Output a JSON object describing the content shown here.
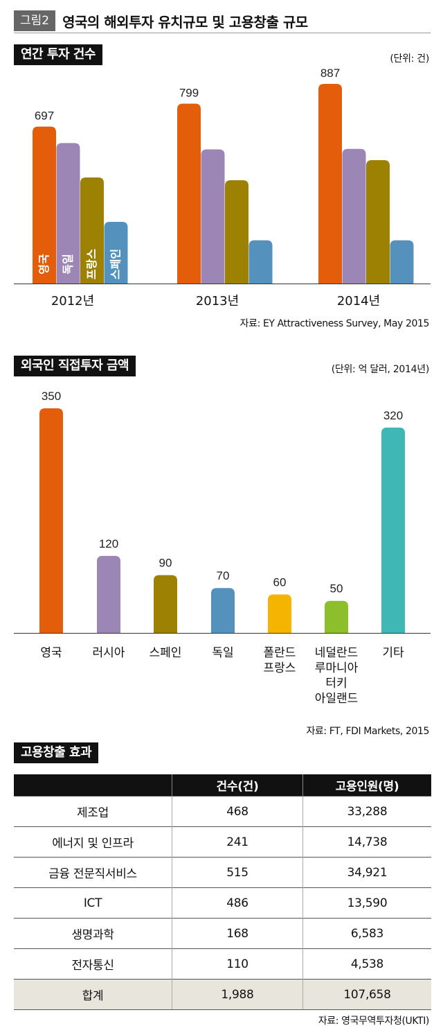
{
  "figure": {
    "tag": "그림2",
    "title": "영국의 해외투자 유치규모 및 고용창출 규모"
  },
  "colors": {
    "orange": "#e35d0b",
    "purple": "#9b86b5",
    "olive": "#9d8102",
    "blue": "#5591bd",
    "yellow": "#f4b400",
    "green": "#8dbf2c",
    "teal": "#3fb8b5",
    "axis": "#333333"
  },
  "chart_data": [
    {
      "type": "bar",
      "title": "연간 투자 건수",
      "unit": "(단위: 건)",
      "source": "자료: EY Attractiveness Survey, May 2015",
      "categories": [
        "2012년",
        "2013년",
        "2014년"
      ],
      "series": [
        {
          "name": "영국",
          "color": "#e35d0b",
          "values": [
            697,
            799,
            887
          ]
        },
        {
          "name": "독일",
          "color": "#9b86b5",
          "values": [
            624,
            596,
            598
          ]
        },
        {
          "name": "프랑스",
          "color": "#9d8102",
          "values": [
            471,
            459,
            548
          ]
        },
        {
          "name": "스페인",
          "color": "#5591bd",
          "values": [
            274,
            192,
            192
          ]
        }
      ],
      "value_labels": [
        "697",
        "799",
        "887"
      ],
      "legend": "inside-bars",
      "ylim": [
        0,
        930
      ]
    },
    {
      "type": "bar",
      "title": "외국인 직접투자 금액",
      "unit": "(단위: 억 달러, 2014년)",
      "source": "자료: FT, FDI Markets, 2015",
      "categories": [
        "영국",
        "러시아",
        "스페인",
        "독일",
        "폴란드\n프랑스",
        "네덜란드\n루마니아\n터키\n아일랜드",
        "기타"
      ],
      "values": [
        350,
        120,
        90,
        70,
        60,
        50,
        320
      ],
      "colors": [
        "#e35d0b",
        "#9b86b5",
        "#9d8102",
        "#5591bd",
        "#f4b400",
        "#8dbf2c",
        "#3fb8b5"
      ],
      "value_labels": [
        "350",
        "120",
        "90",
        "70",
        "60",
        "50",
        "320"
      ],
      "ylim": [
        0,
        380
      ]
    },
    {
      "type": "table",
      "title": "고용창출 효과",
      "source": "자료: 영국무역투자청(UKTI)",
      "columns": [
        "",
        "건수(건)",
        "고용인원(명)"
      ],
      "rows": [
        [
          "제조업",
          "468",
          "33,288"
        ],
        [
          "에너지 및 인프라",
          "241",
          "14,738"
        ],
        [
          "금융 전문직서비스",
          "515",
          "34,921"
        ],
        [
          "ICT",
          "486",
          "13,590"
        ],
        [
          "생명과학",
          "168",
          "6,583"
        ],
        [
          "전자통신",
          "110",
          "4,538"
        ]
      ],
      "total": [
        "합계",
        "1,988",
        "107,658"
      ]
    }
  ]
}
